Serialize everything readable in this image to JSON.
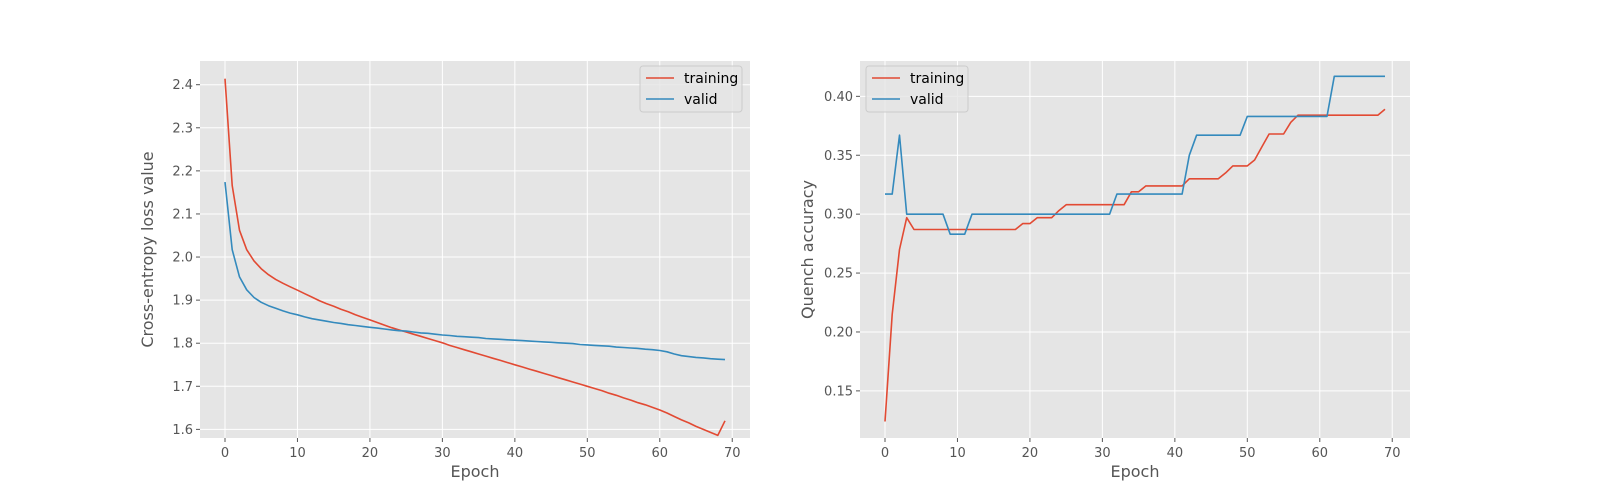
{
  "colors": {
    "training": "#E24A33",
    "valid": "#348ABD",
    "panel_bg": "#E5E5E5",
    "grid": "#FFFFFF",
    "tick_text": "#555555"
  },
  "chart_data": [
    {
      "type": "line",
      "title": "",
      "xlabel": "Epoch",
      "ylabel": "Cross-entropy loss value",
      "xlim": [
        -3.45,
        72.45
      ],
      "ylim": [
        1.58,
        2.455
      ],
      "xticks": [
        0,
        10,
        20,
        30,
        40,
        50,
        60,
        70
      ],
      "yticks": [
        1.6,
        1.7,
        1.8,
        1.9,
        2.0,
        2.1,
        2.2,
        2.3,
        2.4
      ],
      "ytick_format": 1,
      "grid": true,
      "legend": "top-right",
      "series": [
        {
          "name": "training",
          "color": "#E24A33",
          "x": [
            0,
            1,
            2,
            3,
            4,
            5,
            6,
            7,
            8,
            9,
            10,
            11,
            12,
            13,
            14,
            15,
            16,
            17,
            18,
            19,
            20,
            21,
            22,
            23,
            24,
            25,
            26,
            27,
            28,
            29,
            30,
            31,
            32,
            33,
            34,
            35,
            36,
            37,
            38,
            39,
            40,
            41,
            42,
            43,
            44,
            45,
            46,
            47,
            48,
            49,
            50,
            51,
            52,
            53,
            54,
            55,
            56,
            57,
            58,
            59,
            60,
            61,
            62,
            63,
            64,
            65,
            66,
            67,
            68,
            69
          ],
          "y": [
            2.414,
            2.166,
            2.062,
            2.017,
            1.991,
            1.973,
            1.959,
            1.948,
            1.939,
            1.931,
            1.923,
            1.915,
            1.907,
            1.899,
            1.892,
            1.886,
            1.879,
            1.873,
            1.866,
            1.86,
            1.854,
            1.848,
            1.842,
            1.836,
            1.831,
            1.826,
            1.821,
            1.816,
            1.811,
            1.806,
            1.801,
            1.795,
            1.79,
            1.785,
            1.78,
            1.775,
            1.77,
            1.765,
            1.76,
            1.755,
            1.75,
            1.745,
            1.74,
            1.735,
            1.73,
            1.725,
            1.72,
            1.715,
            1.71,
            1.705,
            1.7,
            1.695,
            1.69,
            1.684,
            1.679,
            1.673,
            1.668,
            1.662,
            1.657,
            1.651,
            1.645,
            1.638,
            1.63,
            1.622,
            1.615,
            1.607,
            1.6,
            1.593,
            1.586,
            1.62
          ]
        },
        {
          "name": "valid",
          "color": "#348ABD",
          "x": [
            0,
            1,
            2,
            3,
            4,
            5,
            6,
            7,
            8,
            9,
            10,
            11,
            12,
            13,
            14,
            15,
            16,
            17,
            18,
            19,
            20,
            21,
            22,
            23,
            24,
            25,
            26,
            27,
            28,
            29,
            30,
            31,
            32,
            33,
            34,
            35,
            36,
            37,
            38,
            39,
            40,
            41,
            42,
            43,
            44,
            45,
            46,
            47,
            48,
            49,
            50,
            51,
            52,
            53,
            54,
            55,
            56,
            57,
            58,
            59,
            60,
            61,
            62,
            63,
            64,
            65,
            66,
            67,
            68,
            69
          ],
          "y": [
            2.174,
            2.017,
            1.954,
            1.924,
            1.906,
            1.895,
            1.887,
            1.881,
            1.875,
            1.87,
            1.866,
            1.861,
            1.857,
            1.854,
            1.851,
            1.848,
            1.846,
            1.843,
            1.841,
            1.839,
            1.837,
            1.835,
            1.833,
            1.831,
            1.829,
            1.828,
            1.826,
            1.824,
            1.823,
            1.821,
            1.819,
            1.818,
            1.816,
            1.815,
            1.814,
            1.813,
            1.811,
            1.81,
            1.809,
            1.808,
            1.807,
            1.806,
            1.805,
            1.804,
            1.803,
            1.802,
            1.801,
            1.8,
            1.799,
            1.797,
            1.796,
            1.795,
            1.794,
            1.793,
            1.791,
            1.79,
            1.789,
            1.788,
            1.786,
            1.785,
            1.783,
            1.78,
            1.775,
            1.771,
            1.769,
            1.767,
            1.766,
            1.764,
            1.763,
            1.762
          ]
        }
      ]
    },
    {
      "type": "line",
      "title": "",
      "xlabel": "Epoch",
      "ylabel": "Quench accuracy",
      "xlim": [
        -3.45,
        72.45
      ],
      "ylim": [
        0.11,
        0.43
      ],
      "xticks": [
        0,
        10,
        20,
        30,
        40,
        50,
        60,
        70
      ],
      "yticks": [
        0.15,
        0.2,
        0.25,
        0.3,
        0.35,
        0.4
      ],
      "ytick_format": 2,
      "grid": true,
      "legend": "top-left",
      "series": [
        {
          "name": "training",
          "color": "#E24A33",
          "x": [
            0,
            1,
            2,
            3,
            4,
            5,
            6,
            7,
            8,
            9,
            10,
            11,
            12,
            13,
            14,
            15,
            16,
            17,
            18,
            19,
            20,
            21,
            22,
            23,
            24,
            25,
            26,
            27,
            28,
            29,
            30,
            31,
            32,
            33,
            34,
            35,
            36,
            37,
            38,
            39,
            40,
            41,
            42,
            43,
            44,
            45,
            46,
            47,
            48,
            49,
            50,
            51,
            52,
            53,
            54,
            55,
            56,
            57,
            58,
            59,
            60,
            61,
            62,
            63,
            64,
            65,
            66,
            67,
            68,
            69
          ],
          "y": [
            0.124,
            0.215,
            0.27,
            0.297,
            0.287,
            0.287,
            0.287,
            0.287,
            0.287,
            0.287,
            0.287,
            0.287,
            0.287,
            0.287,
            0.287,
            0.287,
            0.287,
            0.287,
            0.287,
            0.292,
            0.292,
            0.297,
            0.297,
            0.297,
            0.303,
            0.308,
            0.308,
            0.308,
            0.308,
            0.308,
            0.308,
            0.308,
            0.308,
            0.308,
            0.319,
            0.319,
            0.324,
            0.324,
            0.324,
            0.324,
            0.324,
            0.324,
            0.33,
            0.33,
            0.33,
            0.33,
            0.33,
            0.335,
            0.341,
            0.341,
            0.341,
            0.346,
            0.357,
            0.368,
            0.368,
            0.368,
            0.378,
            0.384,
            0.384,
            0.384,
            0.384,
            0.384,
            0.384,
            0.384,
            0.384,
            0.384,
            0.384,
            0.384,
            0.384,
            0.389
          ]
        },
        {
          "name": "valid",
          "color": "#348ABD",
          "x": [
            0,
            1,
            2,
            3,
            4,
            5,
            6,
            7,
            8,
            9,
            10,
            11,
            12,
            13,
            14,
            15,
            16,
            17,
            18,
            19,
            20,
            21,
            22,
            23,
            24,
            25,
            26,
            27,
            28,
            29,
            30,
            31,
            32,
            33,
            34,
            35,
            36,
            37,
            38,
            39,
            40,
            41,
            42,
            43,
            44,
            45,
            46,
            47,
            48,
            49,
            50,
            51,
            52,
            53,
            54,
            55,
            56,
            57,
            58,
            59,
            60,
            61,
            62,
            63,
            64,
            65,
            66,
            67,
            68,
            69
          ],
          "y": [
            0.317,
            0.317,
            0.367,
            0.3,
            0.3,
            0.3,
            0.3,
            0.3,
            0.3,
            0.283,
            0.283,
            0.283,
            0.3,
            0.3,
            0.3,
            0.3,
            0.3,
            0.3,
            0.3,
            0.3,
            0.3,
            0.3,
            0.3,
            0.3,
            0.3,
            0.3,
            0.3,
            0.3,
            0.3,
            0.3,
            0.3,
            0.3,
            0.317,
            0.317,
            0.317,
            0.317,
            0.317,
            0.317,
            0.317,
            0.317,
            0.317,
            0.317,
            0.35,
            0.367,
            0.367,
            0.367,
            0.367,
            0.367,
            0.367,
            0.367,
            0.383,
            0.383,
            0.383,
            0.383,
            0.383,
            0.383,
            0.383,
            0.383,
            0.383,
            0.383,
            0.383,
            0.383,
            0.417,
            0.417,
            0.417,
            0.417,
            0.417,
            0.417,
            0.417,
            0.417
          ]
        }
      ]
    }
  ]
}
